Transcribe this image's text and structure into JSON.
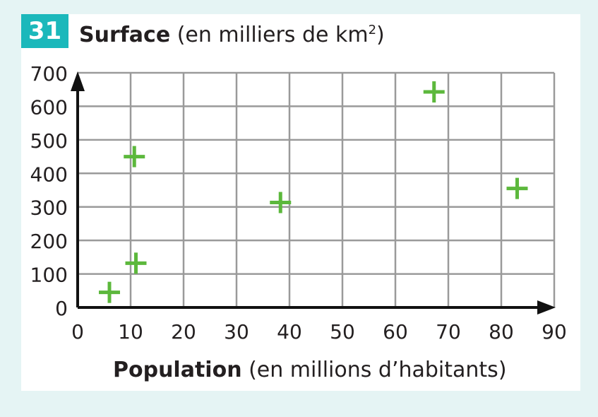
{
  "badge": "31",
  "title": {
    "bold": "Surface",
    "rest": " (en milliers de km",
    "sup": "2",
    "close": ")"
  },
  "xtitle": {
    "bold": "Population",
    "rest": " (en millions d’habitants)"
  },
  "chart_data": {
    "type": "scatter",
    "xlabel": "Population (en millions d’habitants)",
    "ylabel": "Surface (en milliers de km2)",
    "xlim": [
      0,
      90
    ],
    "ylim": [
      0,
      700
    ],
    "xticks": [
      0,
      10,
      20,
      30,
      40,
      50,
      60,
      70,
      80,
      90
    ],
    "yticks": [
      0,
      100,
      200,
      300,
      400,
      500,
      600,
      700
    ],
    "grid": true,
    "marker": "+",
    "color": "#5cb83c",
    "points": [
      {
        "x": 6,
        "y": 45
      },
      {
        "x": 10.7,
        "y": 450
      },
      {
        "x": 11,
        "y": 132
      },
      {
        "x": 38.3,
        "y": 313
      },
      {
        "x": 67.3,
        "y": 643
      },
      {
        "x": 83,
        "y": 355
      }
    ]
  }
}
